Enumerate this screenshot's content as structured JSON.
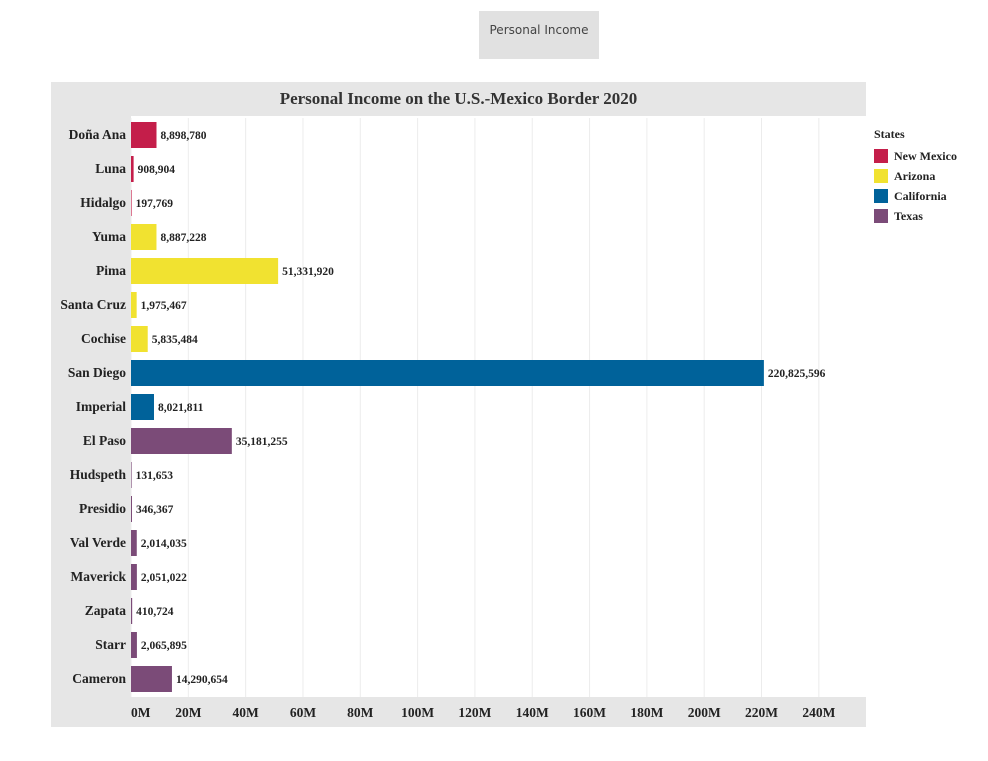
{
  "page_tab": {
    "label": "Personal Income"
  },
  "chart_data": {
    "type": "bar",
    "orientation": "horizontal",
    "title": "Personal Income on the U.S.-Mexico Border 2020",
    "xlim": [
      0,
      250000000
    ],
    "x_ticks": [
      0,
      20000000,
      40000000,
      60000000,
      80000000,
      100000000,
      120000000,
      140000000,
      160000000,
      180000000,
      200000000,
      220000000,
      240000000
    ],
    "x_tick_labels": [
      "0M",
      "20M",
      "40M",
      "60M",
      "80M",
      "100M",
      "120M",
      "140M",
      "160M",
      "180M",
      "200M",
      "220M",
      "240M"
    ],
    "grid": "vertical",
    "legend_position": "right",
    "legend": {
      "title": "States",
      "entries": [
        {
          "name": "New Mexico",
          "color": "#c41e4a"
        },
        {
          "name": "Arizona",
          "color": "#f1e230"
        },
        {
          "name": "California",
          "color": "#00629a"
        },
        {
          "name": "Texas",
          "color": "#7b4b78"
        }
      ]
    },
    "categories": [
      "Doña Ana",
      "Luna",
      "Hidalgo",
      "Yuma",
      "Pima",
      "Santa Cruz",
      "Cochise",
      "San Diego",
      "Imperial",
      "El Paso",
      "Hudspeth",
      "Presidio",
      "Val Verde",
      "Maverick",
      "Zapata",
      "Starr",
      "Cameron"
    ],
    "values": [
      8898780,
      908904,
      197769,
      8887228,
      51331920,
      1975467,
      5835484,
      220825596,
      8021811,
      35181255,
      131653,
      346367,
      2014035,
      2051022,
      410724,
      2065895,
      14290654
    ],
    "value_labels": [
      "8,898,780",
      "908,904",
      "197,769",
      "8,887,228",
      "51,331,920",
      "1,975,467",
      "5,835,484",
      "220,825,596",
      "8,021,811",
      "35,181,255",
      "131,653",
      "346,367",
      "2,014,035",
      "2,051,022",
      "410,724",
      "2,065,895",
      "14,290,654"
    ],
    "states": [
      "New Mexico",
      "New Mexico",
      "New Mexico",
      "Arizona",
      "Arizona",
      "Arizona",
      "Arizona",
      "California",
      "California",
      "Texas",
      "Texas",
      "Texas",
      "Texas",
      "Texas",
      "Texas",
      "Texas",
      "Texas"
    ]
  }
}
